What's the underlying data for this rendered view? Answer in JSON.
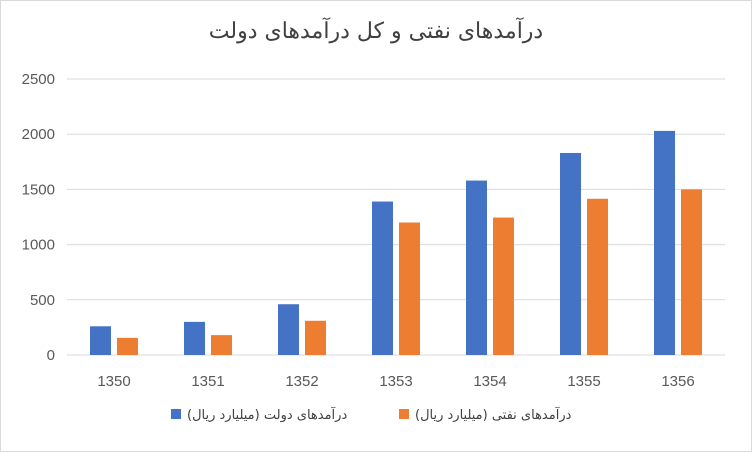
{
  "chart_data": {
    "type": "bar",
    "title": "درآمدهای نفتی و کل درآمدهای دولت",
    "xlabel": "",
    "ylabel": "",
    "categories": [
      "1350",
      "1351",
      "1352",
      "1353",
      "1354",
      "1355",
      "1356"
    ],
    "series": [
      {
        "name": "درآمدهای دولت (میلیارد ریال)",
        "color": "#4472c4",
        "values": [
          260,
          300,
          460,
          1390,
          1580,
          1830,
          2030
        ]
      },
      {
        "name": "درآمدهای نفتی (میلیارد ریال)",
        "color": "#ed7d31",
        "values": [
          155,
          180,
          310,
          1200,
          1245,
          1415,
          1500
        ]
      }
    ],
    "ylim": [
      0,
      2500
    ],
    "yticks": [
      0,
      500,
      1000,
      1500,
      2000,
      2500
    ],
    "grid": true,
    "legend_position": "bottom"
  }
}
